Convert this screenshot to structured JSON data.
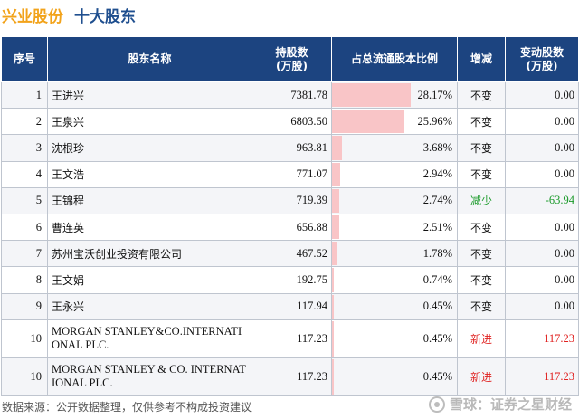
{
  "header": {
    "company": "兴业股份",
    "subtitle": "十大股东"
  },
  "table": {
    "columns": [
      "序号",
      "股东名称",
      "持股数\n(万股)",
      "占总流通股本比例",
      "增减",
      "变动股数\n(万股)"
    ],
    "rows": [
      {
        "rank": "1",
        "name": "王进兴",
        "shares": "7381.78",
        "pct": "28.17%",
        "pct_value": 28.17,
        "change": "不变",
        "change_type": "same",
        "delta": "0.00"
      },
      {
        "rank": "2",
        "name": "王泉兴",
        "shares": "6803.50",
        "pct": "25.96%",
        "pct_value": 25.96,
        "change": "不变",
        "change_type": "same",
        "delta": "0.00"
      },
      {
        "rank": "3",
        "name": "沈根珍",
        "shares": "963.81",
        "pct": "3.68%",
        "pct_value": 3.68,
        "change": "不变",
        "change_type": "same",
        "delta": "0.00"
      },
      {
        "rank": "4",
        "name": "王文浩",
        "shares": "771.07",
        "pct": "2.94%",
        "pct_value": 2.94,
        "change": "不变",
        "change_type": "same",
        "delta": "0.00"
      },
      {
        "rank": "5",
        "name": "王锦程",
        "shares": "719.39",
        "pct": "2.74%",
        "pct_value": 2.74,
        "change": "减少",
        "change_type": "decrease",
        "delta": "-63.94"
      },
      {
        "rank": "6",
        "name": "曹连英",
        "shares": "656.88",
        "pct": "2.51%",
        "pct_value": 2.51,
        "change": "不变",
        "change_type": "same",
        "delta": "0.00"
      },
      {
        "rank": "7",
        "name": "苏州宝沃创业投资有限公司",
        "shares": "467.52",
        "pct": "1.78%",
        "pct_value": 1.78,
        "change": "不变",
        "change_type": "same",
        "delta": "0.00"
      },
      {
        "rank": "8",
        "name": "王文娟",
        "shares": "192.75",
        "pct": "0.74%",
        "pct_value": 0.74,
        "change": "不变",
        "change_type": "same",
        "delta": "0.00"
      },
      {
        "rank": "9",
        "name": "王永兴",
        "shares": "117.94",
        "pct": "0.45%",
        "pct_value": 0.45,
        "change": "不变",
        "change_type": "same",
        "delta": "0.00"
      },
      {
        "rank": "10",
        "name": "MORGAN STANLEY&CO.INTERNATIONAL PLC.",
        "shares": "117.23",
        "pct": "0.45%",
        "pct_value": 0.45,
        "change": "新进",
        "change_type": "new",
        "delta": "117.23"
      },
      {
        "rank": "10",
        "name": "MORGAN STANLEY & CO. INTERNATIONAL PLC.",
        "shares": "117.23",
        "pct": "0.45%",
        "pct_value": 0.45,
        "change": "新进",
        "change_type": "new",
        "delta": "117.23"
      }
    ]
  },
  "footer": {
    "source": "数据来源：公开数据整理，仅供参考不构成投资建议"
  },
  "watermark": {
    "text": "雪球：证券之星财经"
  },
  "colors": {
    "company": "#f2a31b",
    "subtitle": "#1f4f8f",
    "header_bg": "#1c4480",
    "bar": "#f9c5c7",
    "decrease": "#1a9a2a",
    "new": "#e0201f"
  }
}
